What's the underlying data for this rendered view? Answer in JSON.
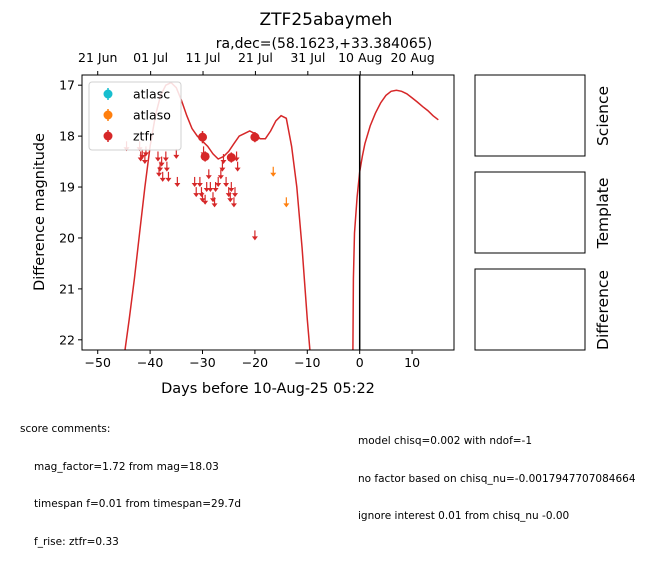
{
  "chart_data": {
    "type": "scatter",
    "title": "ZTF25abaymeh",
    "subtitle": "ra,dec=(58.1623,+33.384065)",
    "xlabel": "Days before 10-Aug-25 05:22",
    "ylabel": "Difference magnitude",
    "xlim": [
      -53,
      18
    ],
    "ylim": [
      22.2,
      16.8
    ],
    "y_inverted": true,
    "grid": false,
    "legend_position": "top-left",
    "x_ticks": [
      -50,
      -40,
      -30,
      -20,
      -10,
      0,
      10
    ],
    "x_tick_labels": [
      "−50",
      "−40",
      "−30",
      "−20",
      "−10",
      "0",
      "10"
    ],
    "y_ticks": [
      17,
      18,
      19,
      20,
      21,
      22
    ],
    "top_axis": {
      "ticks": [
        -50,
        -39.9,
        -29.9,
        -19.9,
        -9.9,
        0.1,
        10.1
      ],
      "labels": [
        "21 Jun",
        "01 Jul",
        "11 Jul",
        "21 Jul",
        "31 Jul",
        "10 Aug",
        "20 Aug"
      ]
    },
    "vline_x": 0,
    "series": [
      {
        "name": "atlasc",
        "color": "#17becf",
        "points": []
      },
      {
        "name": "atlaso",
        "color": "#ff7f0e",
        "upper_limits": [
          {
            "x": -16.5,
            "y": 18.7
          },
          {
            "x": -14,
            "y": 19.3
          }
        ]
      },
      {
        "name": "ztfr",
        "color": "#d62728",
        "points": [
          {
            "x": -30,
            "y": 18.02,
            "err": 0.12
          },
          {
            "x": -29.5,
            "y": 18.4,
            "err": 0.1
          },
          {
            "x": -24.5,
            "y": 18.42,
            "err": 0.1
          },
          {
            "x": -20,
            "y": 18.02,
            "err": 0.1
          }
        ],
        "upper_limits": [
          {
            "x": -44.5,
            "y": 18.2
          },
          {
            "x": -42,
            "y": 18.2
          },
          {
            "x": -41.8,
            "y": 18.4
          },
          {
            "x": -41.5,
            "y": 18.35
          },
          {
            "x": -41,
            "y": 18.45
          },
          {
            "x": -40.8,
            "y": 18.3
          },
          {
            "x": -38.5,
            "y": 18.4
          },
          {
            "x": -38.3,
            "y": 18.7
          },
          {
            "x": -38.1,
            "y": 18.6
          },
          {
            "x": -37.8,
            "y": 18.5
          },
          {
            "x": -37.6,
            "y": 18.8
          },
          {
            "x": -37,
            "y": 18.4
          },
          {
            "x": -36.8,
            "y": 18.6
          },
          {
            "x": -36.5,
            "y": 18.8
          },
          {
            "x": -35,
            "y": 18.35
          },
          {
            "x": -34.8,
            "y": 18.9
          },
          {
            "x": -31.5,
            "y": 18.9
          },
          {
            "x": -31.2,
            "y": 19.1
          },
          {
            "x": -30.5,
            "y": 18.9
          },
          {
            "x": -30.2,
            "y": 19.1
          },
          {
            "x": -30,
            "y": 19.2
          },
          {
            "x": -29.8,
            "y": 18.3
          },
          {
            "x": -29.5,
            "y": 19.25
          },
          {
            "x": -29.2,
            "y": 19.0
          },
          {
            "x": -28.8,
            "y": 18.75
          },
          {
            "x": -28.5,
            "y": 19.0
          },
          {
            "x": -28,
            "y": 19.2
          },
          {
            "x": -27.7,
            "y": 19.3
          },
          {
            "x": -27.5,
            "y": 19.0
          },
          {
            "x": -27,
            "y": 18.9
          },
          {
            "x": -26.5,
            "y": 18.75
          },
          {
            "x": -26.2,
            "y": 18.6
          },
          {
            "x": -26,
            "y": 18.45
          },
          {
            "x": -25.5,
            "y": 18.9
          },
          {
            "x": -25,
            "y": 19.1
          },
          {
            "x": -24.7,
            "y": 19.2
          },
          {
            "x": -24.5,
            "y": 19.0
          },
          {
            "x": -24,
            "y": 19.3
          },
          {
            "x": -23.8,
            "y": 19.1
          },
          {
            "x": -23.5,
            "y": 18.4
          },
          {
            "x": -23.3,
            "y": 18.6
          },
          {
            "x": -20,
            "y": 19.95
          }
        ]
      }
    ],
    "model_curve": {
      "color": "#d62728",
      "x": [
        -44.8,
        -44,
        -43,
        -42,
        -41,
        -40,
        -39,
        -38,
        -37,
        -36,
        -35,
        -34,
        -33,
        -32,
        -31,
        -30,
        -29,
        -28,
        -27,
        -26,
        -25,
        -24,
        -23,
        -22,
        -21,
        -20,
        -19,
        -18,
        -17,
        -16,
        -15,
        -14,
        -13,
        -12,
        -11,
        -10.5,
        -10,
        -9.5
      ],
      "y": [
        22.2,
        21.6,
        20.8,
        19.9,
        19.0,
        18.2,
        17.6,
        17.2,
        17.0,
        16.95,
        17.05,
        17.3,
        17.6,
        17.85,
        18.0,
        18.1,
        18.2,
        18.35,
        18.45,
        18.4,
        18.3,
        18.15,
        18.0,
        17.95,
        17.9,
        17.95,
        18.05,
        18.05,
        17.9,
        17.7,
        17.6,
        17.65,
        18.2,
        19.0,
        20.2,
        20.9,
        21.6,
        22.2
      ],
      "x2": [
        -1.3,
        -1.2,
        -1,
        -0.5,
        0,
        0.5,
        1,
        2,
        3,
        4,
        5,
        6,
        7,
        8,
        9,
        10,
        11,
        12,
        13,
        14,
        15
      ],
      "y2": [
        22.2,
        20.8,
        19.9,
        19.2,
        18.7,
        18.4,
        18.15,
        17.8,
        17.55,
        17.35,
        17.2,
        17.12,
        17.1,
        17.12,
        17.17,
        17.25,
        17.33,
        17.42,
        17.5,
        17.6,
        17.68
      ]
    }
  },
  "side_panels": [
    "Science",
    "Template",
    "Difference"
  ],
  "comments": {
    "left_header": "score comments:",
    "left_lines": [
      "mag_factor=1.72 from mag=18.03",
      "timespan f=0.01 from timespan=29.7d",
      "f_rise: ztfr=0.33"
    ],
    "right_lines": [
      "model chisq=0.002 with ndof=-1",
      "no factor based on chisq_nu=-0.0017947707084664",
      "ignore interest 0.01 from chisq_nu -0.00"
    ]
  }
}
